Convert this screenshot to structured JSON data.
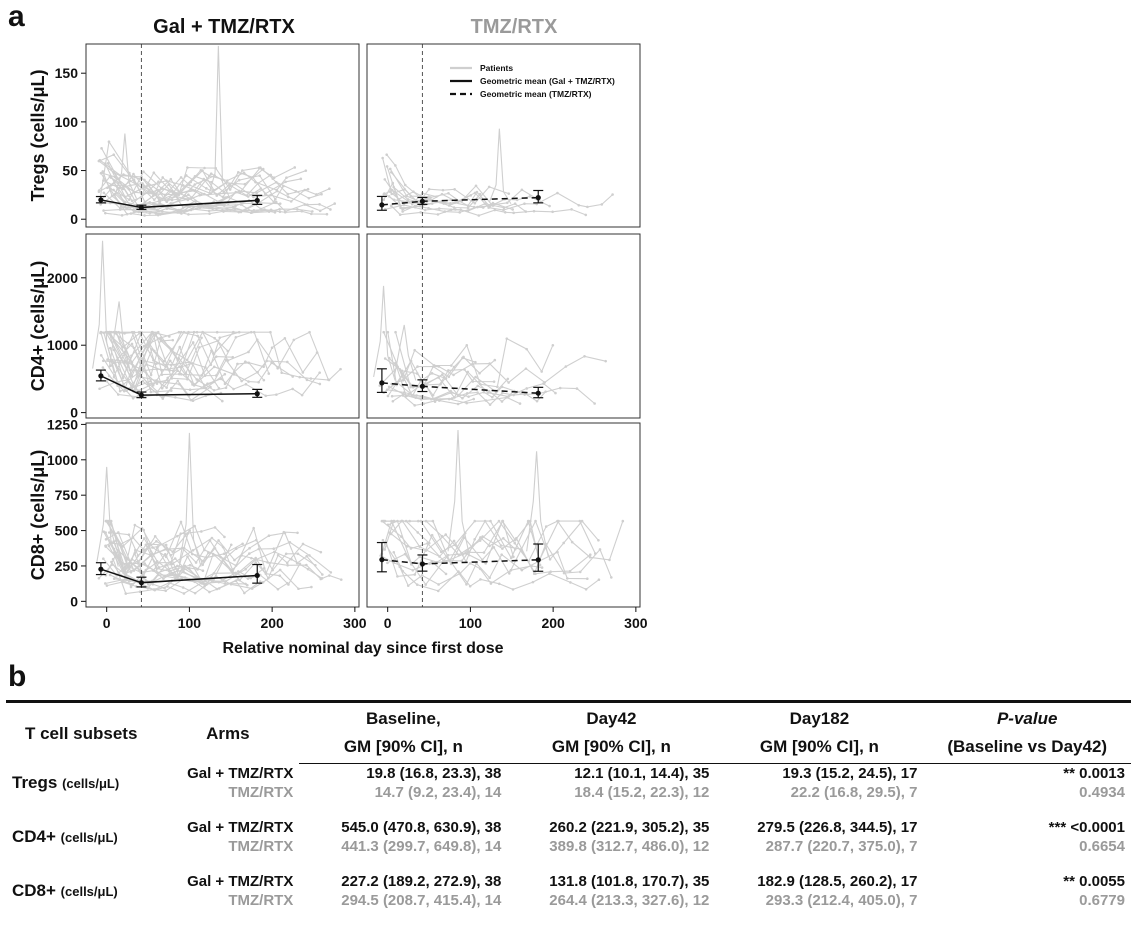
{
  "panel_a": {
    "letter": "a",
    "col_titles": [
      "Gal + TMZ/RTX",
      "TMZ/RTX"
    ],
    "col_title_colors": [
      "#111111",
      "#9a9a9a"
    ]
  },
  "panel_b": {
    "letter": "b"
  },
  "chart_data": {
    "type": "line",
    "xlabel": "Relative nominal day since first dose",
    "x_ticks": [
      0,
      100,
      200,
      300
    ],
    "xlim": [
      -25,
      305
    ],
    "reference_line_x": 42,
    "legend": {
      "placement": "top-right (TMZ/RTX Tregs panel)",
      "entries": [
        "Patients",
        "Geometric mean (Gal + TMZ/RTX)",
        "Geometric mean (TMZ/RTX)"
      ]
    },
    "colors": {
      "patients": "#cfcfcf",
      "mean": "#111111"
    },
    "rows": [
      {
        "ylabel": "Tregs (cells/μL)",
        "ylim": [
          -8,
          180
        ],
        "y_ticks": [
          0,
          50,
          100,
          150
        ],
        "gal_mean": {
          "x": [
            -7,
            42,
            182
          ],
          "y": [
            19.8,
            12.1,
            19.3
          ],
          "lo": [
            16.8,
            10.1,
            15.2
          ],
          "hi": [
            23.3,
            14.4,
            24.5
          ]
        },
        "tmz_mean": {
          "x": [
            -7,
            42,
            182
          ],
          "y": [
            14.7,
            18.4,
            22.2
          ],
          "lo": [
            9.2,
            15.2,
            16.8
          ],
          "hi": [
            23.4,
            22.3,
            29.5
          ]
        },
        "gal_spikes": [
          [
            135,
            178
          ],
          [
            22,
            88
          ]
        ],
        "tmz_spikes": [
          [
            135,
            93
          ]
        ]
      },
      {
        "ylabel": "CD4+ (cells/μL)",
        "ylim": [
          -80,
          2650
        ],
        "y_ticks": [
          0,
          1000,
          2000
        ],
        "gal_mean": {
          "x": [
            -7,
            42,
            182
          ],
          "y": [
            545.0,
            260.2,
            279.5
          ],
          "lo": [
            470.8,
            221.9,
            226.8
          ],
          "hi": [
            630.9,
            305.2,
            344.5
          ]
        },
        "tmz_mean": {
          "x": [
            -7,
            42,
            182
          ],
          "y": [
            441.3,
            389.8,
            287.7
          ],
          "lo": [
            299.7,
            312.7,
            220.7
          ],
          "hi": [
            649.8,
            486.0,
            375.0
          ]
        },
        "gal_spikes": [
          [
            -5,
            2550
          ],
          [
            15,
            1650
          ]
        ],
        "tmz_spikes": [
          [
            -5,
            1880
          ],
          [
            20,
            1300
          ]
        ]
      },
      {
        "ylabel": "CD8+ (cells/μL)",
        "ylim": [
          -40,
          1260
        ],
        "y_ticks": [
          0,
          250,
          500,
          750,
          1000,
          1250
        ],
        "gal_mean": {
          "x": [
            -7,
            42,
            182
          ],
          "y": [
            227.2,
            131.8,
            182.9
          ],
          "lo": [
            189.2,
            101.8,
            128.5
          ],
          "hi": [
            272.9,
            170.7,
            260.2
          ]
        },
        "tmz_mean": {
          "x": [
            -7,
            42,
            182
          ],
          "y": [
            294.5,
            264.4,
            293.3
          ],
          "lo": [
            208.7,
            213.3,
            212.4
          ],
          "hi": [
            415.4,
            327.6,
            405.0
          ]
        },
        "gal_spikes": [
          [
            100,
            1190
          ],
          [
            0,
            950
          ]
        ],
        "tmz_spikes": [
          [
            85,
            1210
          ],
          [
            180,
            1060
          ]
        ]
      }
    ]
  },
  "table": {
    "headers": {
      "subset": "T cell subsets",
      "arms": "Arms",
      "baseline": [
        "Baseline,",
        "GM [90% CI], n"
      ],
      "day42": [
        "Day42",
        "GM [90% CI], n"
      ],
      "day182": [
        "Day182",
        "GM [90% CI], n"
      ],
      "pvalue": [
        "P-value",
        "(Baseline vs Day42)"
      ]
    },
    "rows": [
      {
        "subset": "Tregs",
        "unit": "(cells/μL)",
        "arms": [
          {
            "arm": "Gal + TMZ/RTX",
            "baseline": "19.8 (16.8, 23.3), 38",
            "day42": "12.1 (10.1, 14.4), 35",
            "day182": "19.3 (15.2, 24.5), 17",
            "p": "** 0.0013"
          },
          {
            "arm": "TMZ/RTX",
            "baseline": "14.7 (9.2, 23.4), 14",
            "day42": "18.4 (15.2, 22.3), 12",
            "day182": "22.2 (16.8, 29.5), 7",
            "p": "0.4934"
          }
        ]
      },
      {
        "subset": "CD4+",
        "unit": "(cells/μL)",
        "arms": [
          {
            "arm": "Gal + TMZ/RTX",
            "baseline": "545.0 (470.8, 630.9), 38",
            "day42": "260.2 (221.9, 305.2), 35",
            "day182": "279.5 (226.8, 344.5), 17",
            "p": "*** <0.0001"
          },
          {
            "arm": "TMZ/RTX",
            "baseline": "441.3 (299.7, 649.8), 14",
            "day42": "389.8 (312.7, 486.0), 12",
            "day182": "287.7 (220.7, 375.0), 7",
            "p": "0.6654"
          }
        ]
      },
      {
        "subset": "CD8+",
        "unit": "(cells/μL)",
        "arms": [
          {
            "arm": "Gal + TMZ/RTX",
            "baseline": "227.2 (189.2, 272.9), 38",
            "day42": "131.8 (101.8, 170.7), 35",
            "day182": "182.9 (128.5, 260.2), 17",
            "p": "** 0.0055"
          },
          {
            "arm": "TMZ/RTX",
            "baseline": "294.5 (208.7, 415.4), 14",
            "day42": "264.4 (213.3, 327.6), 12",
            "day182": "293.3 (212.4, 405.0), 7",
            "p": "0.6779"
          }
        ]
      }
    ]
  }
}
